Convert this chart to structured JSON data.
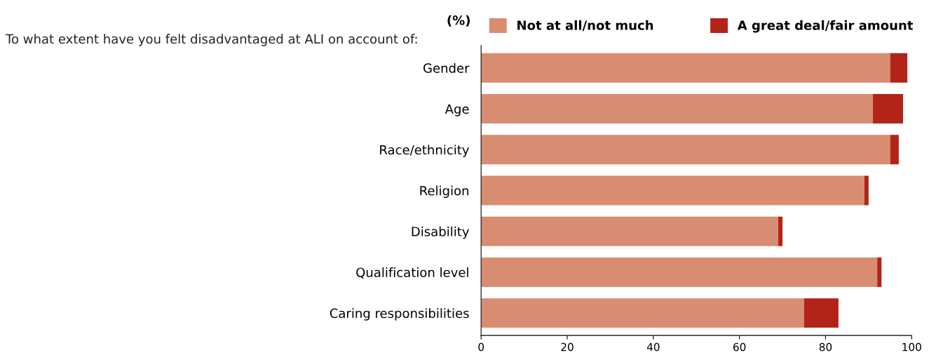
{
  "chart_data": {
    "type": "bar",
    "orientation": "horizontal",
    "stacked": true,
    "title": "To what extent have you felt disadvantaged at ALI on account of:",
    "xlabel": "(%)",
    "categories": [
      "Gender",
      "Age",
      "Race/ethnicity",
      "Religion",
      "Disability",
      "Qualification level",
      "Caring responsibilities"
    ],
    "series": [
      {
        "name": "Not at all/not much",
        "color": "#d88d72",
        "values": [
          95,
          91,
          95,
          89,
          69,
          92,
          75
        ]
      },
      {
        "name": "A great deal/fair amount",
        "color": "#b22418",
        "values": [
          4,
          7,
          2,
          1,
          1,
          1,
          8
        ]
      }
    ],
    "xlim": [
      0,
      100
    ],
    "xticks": [
      0,
      20,
      40,
      60,
      80,
      100
    ],
    "grid": false,
    "legend": "top right"
  }
}
